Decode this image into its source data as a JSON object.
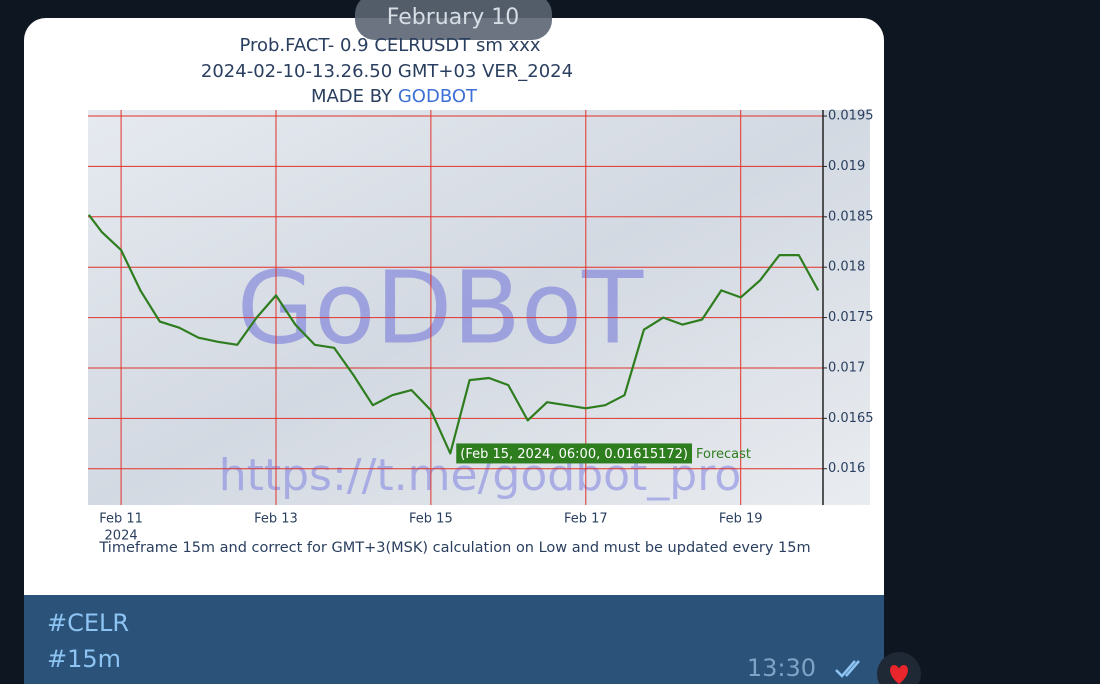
{
  "telegram": {
    "date_pill": "February 10",
    "hashtags": [
      "#CELR",
      "#15m"
    ],
    "time": "13:30"
  },
  "chart_data": {
    "type": "line",
    "title_lines": [
      "Prob.FACT- 0.9 CELRUSDT sm xxx",
      "2024-02-10-13.26.50 GMT+03 VER_2024"
    ],
    "credit": {
      "prefix": "MADE BY",
      "name": "GODBOT"
    },
    "watermarks": [
      "GoDBoT",
      "https://t.me/godbot_pro"
    ],
    "footnote": "Timeframe 15m and correct for GMT+3(MSK) calculation on Low and must be updated every 15m",
    "x": [
      "2024-02-10T14:00",
      "2024-02-10T18:00",
      "2024-02-11T00:00",
      "2024-02-11T06:00",
      "2024-02-11T12:00",
      "2024-02-11T18:00",
      "2024-02-12T00:00",
      "2024-02-12T06:00",
      "2024-02-12T12:00",
      "2024-02-12T18:00",
      "2024-02-13T00:00",
      "2024-02-13T06:00",
      "2024-02-13T12:00",
      "2024-02-13T18:00",
      "2024-02-14T00:00",
      "2024-02-14T06:00",
      "2024-02-14T12:00",
      "2024-02-14T18:00",
      "2024-02-15T00:00",
      "2024-02-15T06:00",
      "2024-02-15T12:00",
      "2024-02-15T18:00",
      "2024-02-16T00:00",
      "2024-02-16T06:00",
      "2024-02-16T12:00",
      "2024-02-16T18:00",
      "2024-02-17T00:00",
      "2024-02-17T06:00",
      "2024-02-17T12:00",
      "2024-02-17T18:00",
      "2024-02-18T00:00",
      "2024-02-18T06:00",
      "2024-02-18T12:00",
      "2024-02-18T18:00",
      "2024-02-19T00:00",
      "2024-02-19T06:00",
      "2024-02-19T12:00",
      "2024-02-19T18:00",
      "2024-02-20T00:00"
    ],
    "series": [
      {
        "name": "Forecast",
        "color": "#2e7d1f",
        "values": [
          0.01852,
          0.01835,
          0.01817,
          0.01777,
          0.01746,
          0.0174,
          0.0173,
          0.01726,
          0.01723,
          0.0175,
          0.01772,
          0.01743,
          0.01723,
          0.0172,
          0.01693,
          0.01663,
          0.01673,
          0.01678,
          0.01658,
          0.01615172,
          0.01688,
          0.0169,
          0.01683,
          0.01648,
          0.01666,
          0.01663,
          0.0166,
          0.01663,
          0.01673,
          0.01738,
          0.0175,
          0.01743,
          0.01748,
          0.01777,
          0.0177,
          0.01787,
          0.01812,
          0.01812,
          0.01777
        ]
      }
    ],
    "tooltip": "(Feb 15, 2024, 06:00, 0.01615172)",
    "xlim": [
      "2024-02-10T13:45",
      "2024-02-20T01:30"
    ],
    "xticks": [
      {
        "value": "2024-02-11T00:00",
        "label": "Feb 11"
      },
      {
        "value": "2024-02-13T00:00",
        "label": "Feb 13"
      },
      {
        "value": "2024-02-15T00:00",
        "label": "Feb 15"
      },
      {
        "value": "2024-02-17T00:00",
        "label": "Feb 17"
      },
      {
        "value": "2024-02-19T00:00",
        "label": "Feb 19"
      }
    ],
    "x_year_label": "2024",
    "ylim": [
      0.01564,
      0.01956
    ],
    "yticks": [
      0.016,
      0.0165,
      0.017,
      0.0175,
      0.018,
      0.0185,
      0.019,
      0.0195
    ],
    "grid": true,
    "grid_color": "#e0322a",
    "y_axis_side": "right"
  }
}
